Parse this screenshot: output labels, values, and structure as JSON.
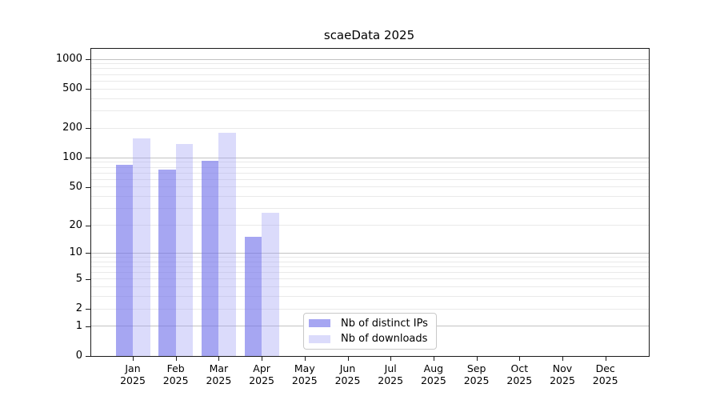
{
  "chart_data": {
    "type": "bar",
    "title": "scaeData 2025",
    "categories": [
      "Jan 2025",
      "Feb 2025",
      "Mar 2025",
      "Apr 2025",
      "May 2025",
      "Jun 2025",
      "Jul 2025",
      "Aug 2025",
      "Sep 2025",
      "Oct 2025",
      "Nov 2025",
      "Dec 2025"
    ],
    "x_months": [
      "Jan",
      "Feb",
      "Mar",
      "Apr",
      "May",
      "Jun",
      "Jul",
      "Aug",
      "Sep",
      "Oct",
      "Nov",
      "Dec"
    ],
    "x_year": "2025",
    "series": [
      {
        "name": "Nb of distinct IPs",
        "color": "rgba(114,114,235,0.63)",
        "legend_hex": "#a6a6f4",
        "values": [
          85,
          75,
          93,
          15,
          0,
          0,
          0,
          0,
          0,
          0,
          0,
          0
        ]
      },
      {
        "name": "Nb of downloads",
        "color": "rgba(160,160,245,0.38)",
        "legend_hex": "#dbdbfb",
        "values": [
          157,
          138,
          180,
          27,
          0,
          0,
          0,
          0,
          0,
          0,
          0,
          0
        ]
      }
    ],
    "y_axis": {
      "scale": "symlog",
      "ticks": [
        0,
        1,
        2,
        5,
        10,
        20,
        50,
        100,
        200,
        500,
        1000
      ],
      "tick_labels": [
        "0",
        "1",
        "2",
        "5",
        "10",
        "20",
        "50",
        "100",
        "200",
        "500",
        "1000"
      ],
      "range_top": 1100
    },
    "grid": {
      "on": true,
      "major_color": "#c2c2c2",
      "minor_color": "#e9e9e9"
    },
    "legend_position": "lower center",
    "spine_color": "#1a1a1a",
    "text_color": "#000000"
  }
}
